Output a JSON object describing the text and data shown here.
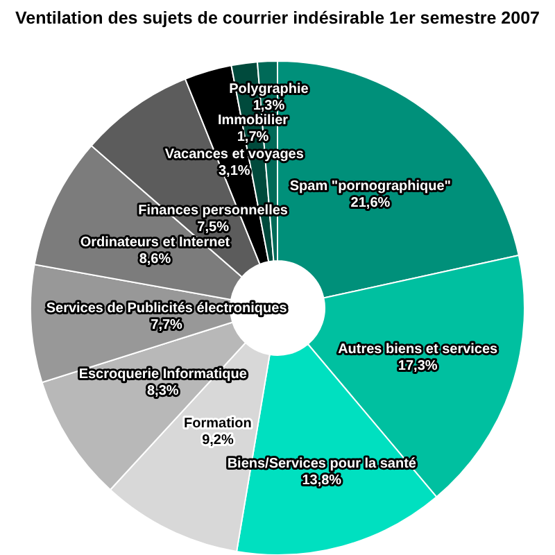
{
  "chart_data": {
    "type": "donut",
    "title": "Ventilation des sujets de courrier indésirable 1er semestre 2007",
    "categories": [
      "Spam \"pornographique\"",
      "Autres biens et services",
      "Biens/Services pour la santé",
      "Formation",
      "Escroquerie Informatique",
      "Services de Publicités électroniques",
      "Ordinateurs et Internet",
      "Finances personnelles",
      "Vacances et voyages",
      "Immobilier",
      "Polygraphie"
    ],
    "values": [
      21.6,
      17.3,
      13.8,
      9.2,
      8.3,
      7.7,
      8.6,
      7.5,
      3.1,
      1.7,
      1.3
    ],
    "value_labels": [
      "21,6%",
      "17,3%",
      "13,8%",
      "9,2%",
      "8,3%",
      "7,7%",
      "8,6%",
      "7,5%",
      "3,1%",
      "1,7%",
      "1,3%"
    ],
    "colors": [
      "#00907a",
      "#00c0a0",
      "#00e0c0",
      "#d8d8d8",
      "#b8b8b8",
      "#989898",
      "#7c7c7c",
      "#5c5c5c",
      "#000000",
      "#004a3c",
      "#006a58"
    ]
  }
}
